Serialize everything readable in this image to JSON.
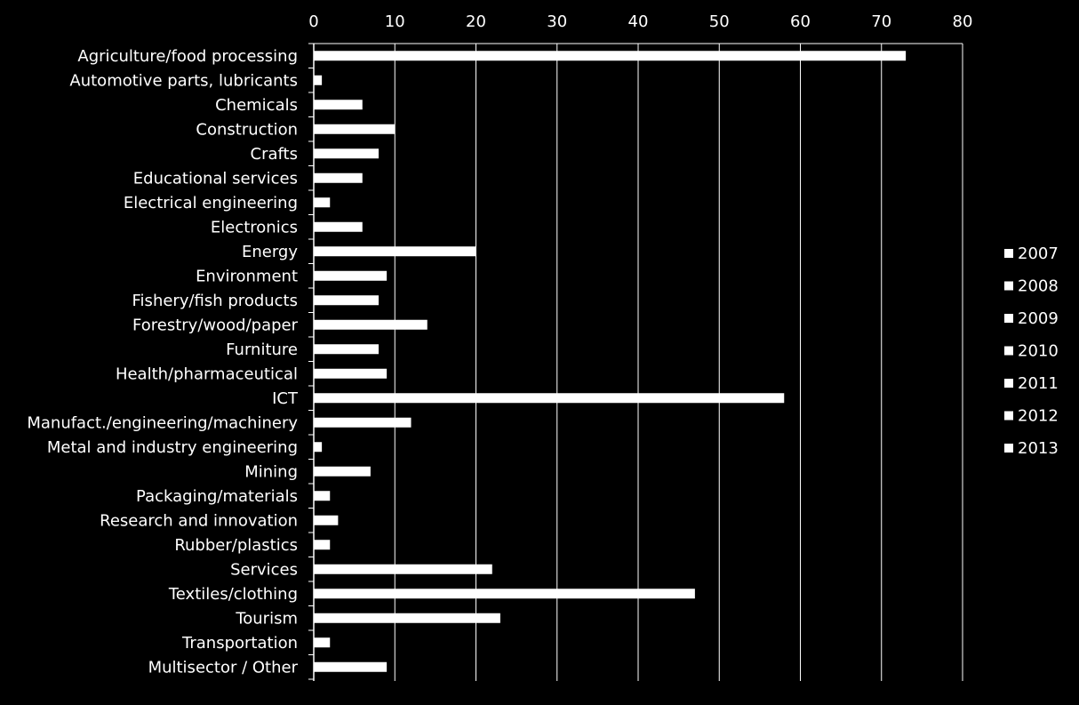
{
  "colors": {
    "background": "#000000",
    "foreground": "#ffffff"
  },
  "chart_data": {
    "type": "bar",
    "orientation": "horizontal",
    "xlim": [
      0,
      80
    ],
    "x_ticks": [
      0,
      10,
      20,
      30,
      40,
      50,
      60,
      70,
      80
    ],
    "x_axis_position": "top",
    "grid": true,
    "legend_position": "right",
    "categories": [
      "Agriculture/food processing",
      "Automotive parts, lubricants",
      "Chemicals",
      "Construction",
      "Crafts",
      "Educational services",
      "Electrical engineering",
      "Electronics",
      "Energy",
      "Environment",
      "Fishery/fish products",
      "Forestry/wood/paper",
      "Furniture",
      "Health/pharmaceutical",
      "ICT",
      "Manufact./engineering/machinery",
      "Metal and industry engineering",
      "Mining",
      "Packaging/materials",
      "Research and innovation",
      "Rubber/plastics",
      "Services",
      "Textiles/clothing",
      "Tourism",
      "Transportation",
      "Multisector / Other"
    ],
    "values": [
      73,
      1,
      6,
      10,
      8,
      6,
      2,
      6,
      20,
      9,
      8,
      14,
      8,
      9,
      58,
      12,
      1,
      7,
      2,
      3,
      2,
      22,
      47,
      23,
      2,
      9
    ],
    "legend": [
      "2007",
      "2008",
      "2009",
      "2010",
      "2011",
      "2012",
      "2013"
    ]
  }
}
